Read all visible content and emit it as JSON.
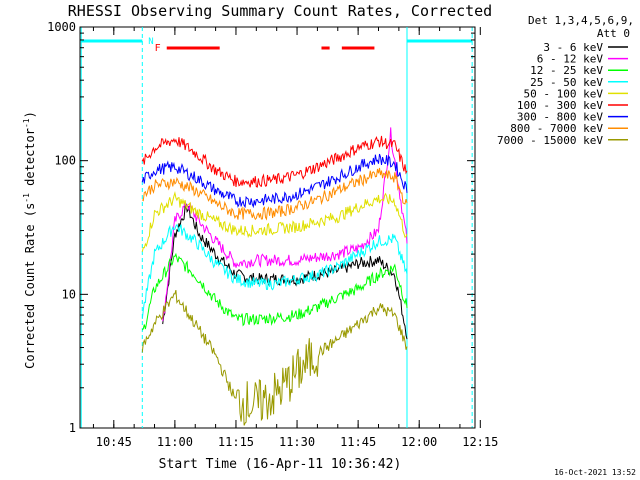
{
  "chart_data": {
    "type": "line",
    "title": "RHESSI Observing Summary Count Rates, Corrected",
    "ylabel_main": "Corrected Count Rate (s",
    "ylabel_sup1": "-1",
    "ylabel_mid": " detector",
    "ylabel_sup2": "-1",
    "ylabel_end": ")",
    "xlabel": "Start Time (16-Apr-11 10:36:42)",
    "yscale": "log",
    "ylim": [
      1,
      1000
    ],
    "x_ticks": [
      "10:45",
      "11:00",
      "11:15",
      "11:30",
      "11:45",
      "12:00",
      "12:15"
    ],
    "y_ticks": [
      "1",
      "10",
      "100",
      "1000"
    ],
    "legend_header": [
      "Det 1,3,4,5,6,9,",
      "Att 0"
    ],
    "flags": {
      "flare": "F",
      "night": "N"
    },
    "timestamp": "16-Oct-2021 13:52",
    "series": [
      {
        "name": "3 - 6 keV",
        "color": "#000000",
        "t": [
          "10:57",
          "11:00",
          "11:03",
          "11:06",
          "11:10",
          "11:15",
          "11:20",
          "11:25",
          "11:30",
          "11:35",
          "11:40",
          "11:45",
          "11:50",
          "11:54",
          "11:57"
        ],
        "values": [
          6,
          28,
          45,
          28,
          20,
          14,
          13,
          13,
          13,
          14,
          15,
          17,
          18,
          14,
          5
        ]
      },
      {
        "name": "6 - 12 keV",
        "color": "#ff00ff",
        "t": [
          "10:57",
          "11:00",
          "11:03",
          "11:06",
          "11:10",
          "11:15",
          "11:20",
          "11:25",
          "11:30",
          "11:35",
          "11:40",
          "11:45",
          "11:50",
          "11:53",
          "11:57"
        ],
        "values": [
          6,
          35,
          48,
          35,
          25,
          17,
          18,
          18,
          18,
          19,
          20,
          22,
          30,
          160,
          25
        ]
      },
      {
        "name": "12 - 25 keV",
        "color": "#00ff00",
        "t": [
          "10:52",
          "10:55",
          "11:00",
          "11:05",
          "11:10",
          "11:15",
          "11:20",
          "11:25",
          "11:30",
          "11:35",
          "11:40",
          "11:45",
          "11:50",
          "11:54",
          "11:57"
        ],
        "values": [
          5,
          11,
          19,
          14,
          9,
          6.5,
          6.5,
          6.7,
          7,
          8,
          9.5,
          11,
          14,
          16,
          8
        ]
      },
      {
        "name": "25 - 50 keV",
        "color": "#00ffff",
        "t": [
          "10:52",
          "10:55",
          "11:00",
          "11:05",
          "11:10",
          "11:15",
          "11:20",
          "11:25",
          "11:30",
          "11:35",
          "11:40",
          "11:45",
          "11:50",
          "11:54",
          "11:57"
        ],
        "values": [
          7,
          20,
          33,
          25,
          17,
          13,
          12,
          12,
          13,
          14,
          16,
          20,
          25,
          26,
          14
        ]
      },
      {
        "name": "50 - 100 keV",
        "color": "#e0e000",
        "t": [
          "10:52",
          "10:55",
          "11:00",
          "11:05",
          "11:10",
          "11:15",
          "11:20",
          "11:25",
          "11:30",
          "11:35",
          "11:40",
          "11:45",
          "11:50",
          "11:54",
          "11:57"
        ],
        "values": [
          20,
          40,
          52,
          42,
          35,
          30,
          30,
          31,
          32,
          35,
          38,
          45,
          52,
          50,
          26
        ]
      },
      {
        "name": "100 - 300 keV",
        "color": "#ff0000",
        "t": [
          "10:52",
          "10:55",
          "11:00",
          "11:05",
          "11:10",
          "11:15",
          "11:20",
          "11:25",
          "11:30",
          "11:35",
          "11:40",
          "11:45",
          "11:50",
          "11:54",
          "11:57"
        ],
        "values": [
          95,
          125,
          145,
          115,
          85,
          70,
          70,
          72,
          78,
          90,
          105,
          125,
          140,
          130,
          80
        ]
      },
      {
        "name": "300 - 800 keV",
        "color": "#0000ff",
        "t": [
          "10:52",
          "10:55",
          "11:00",
          "11:05",
          "11:10",
          "11:15",
          "11:20",
          "11:25",
          "11:30",
          "11:35",
          "11:40",
          "11:45",
          "11:50",
          "11:54",
          "11:57"
        ],
        "values": [
          70,
          85,
          90,
          75,
          60,
          50,
          50,
          52,
          56,
          64,
          75,
          90,
          104,
          95,
          60
        ]
      },
      {
        "name": "800 - 7000 keV",
        "color": "#ff8c00",
        "t": [
          "10:52",
          "10:55",
          "11:00",
          "11:05",
          "11:10",
          "11:15",
          "11:20",
          "11:25",
          "11:30",
          "11:35",
          "11:40",
          "11:45",
          "11:50",
          "11:54",
          "11:57"
        ],
        "values": [
          55,
          65,
          70,
          60,
          48,
          40,
          40,
          41,
          45,
          51,
          60,
          70,
          80,
          75,
          45
        ]
      },
      {
        "name": "7000 - 15000 keV",
        "color": "#999900",
        "t": [
          "10:52",
          "10:55",
          "11:00",
          "11:05",
          "11:10",
          "11:15",
          "11:20",
          "11:25",
          "11:30",
          "11:35",
          "11:40",
          "11:45",
          "11:50",
          "11:54",
          "11:57"
        ],
        "values": [
          4,
          6,
          10,
          6,
          3.5,
          1.6,
          1.5,
          1.8,
          2.6,
          3.6,
          4.6,
          6,
          8,
          7,
          4
        ]
      }
    ],
    "flag_bars": [
      {
        "name": "flare",
        "color": "#ff0000",
        "segments": [
          [
            "10:58",
            "11:11"
          ],
          [
            "11:36",
            "11:38"
          ],
          [
            "11:41",
            "11:49"
          ]
        ]
      },
      {
        "name": "night",
        "color": "#00ffff",
        "segments": [
          [
            "10:37",
            "10:52"
          ],
          [
            "11:57",
            "12:13"
          ]
        ]
      }
    ],
    "vlines_dashed": [
      "10:52",
      "12:13"
    ],
    "vlines_solid": [
      "10:37",
      "11:57"
    ]
  }
}
